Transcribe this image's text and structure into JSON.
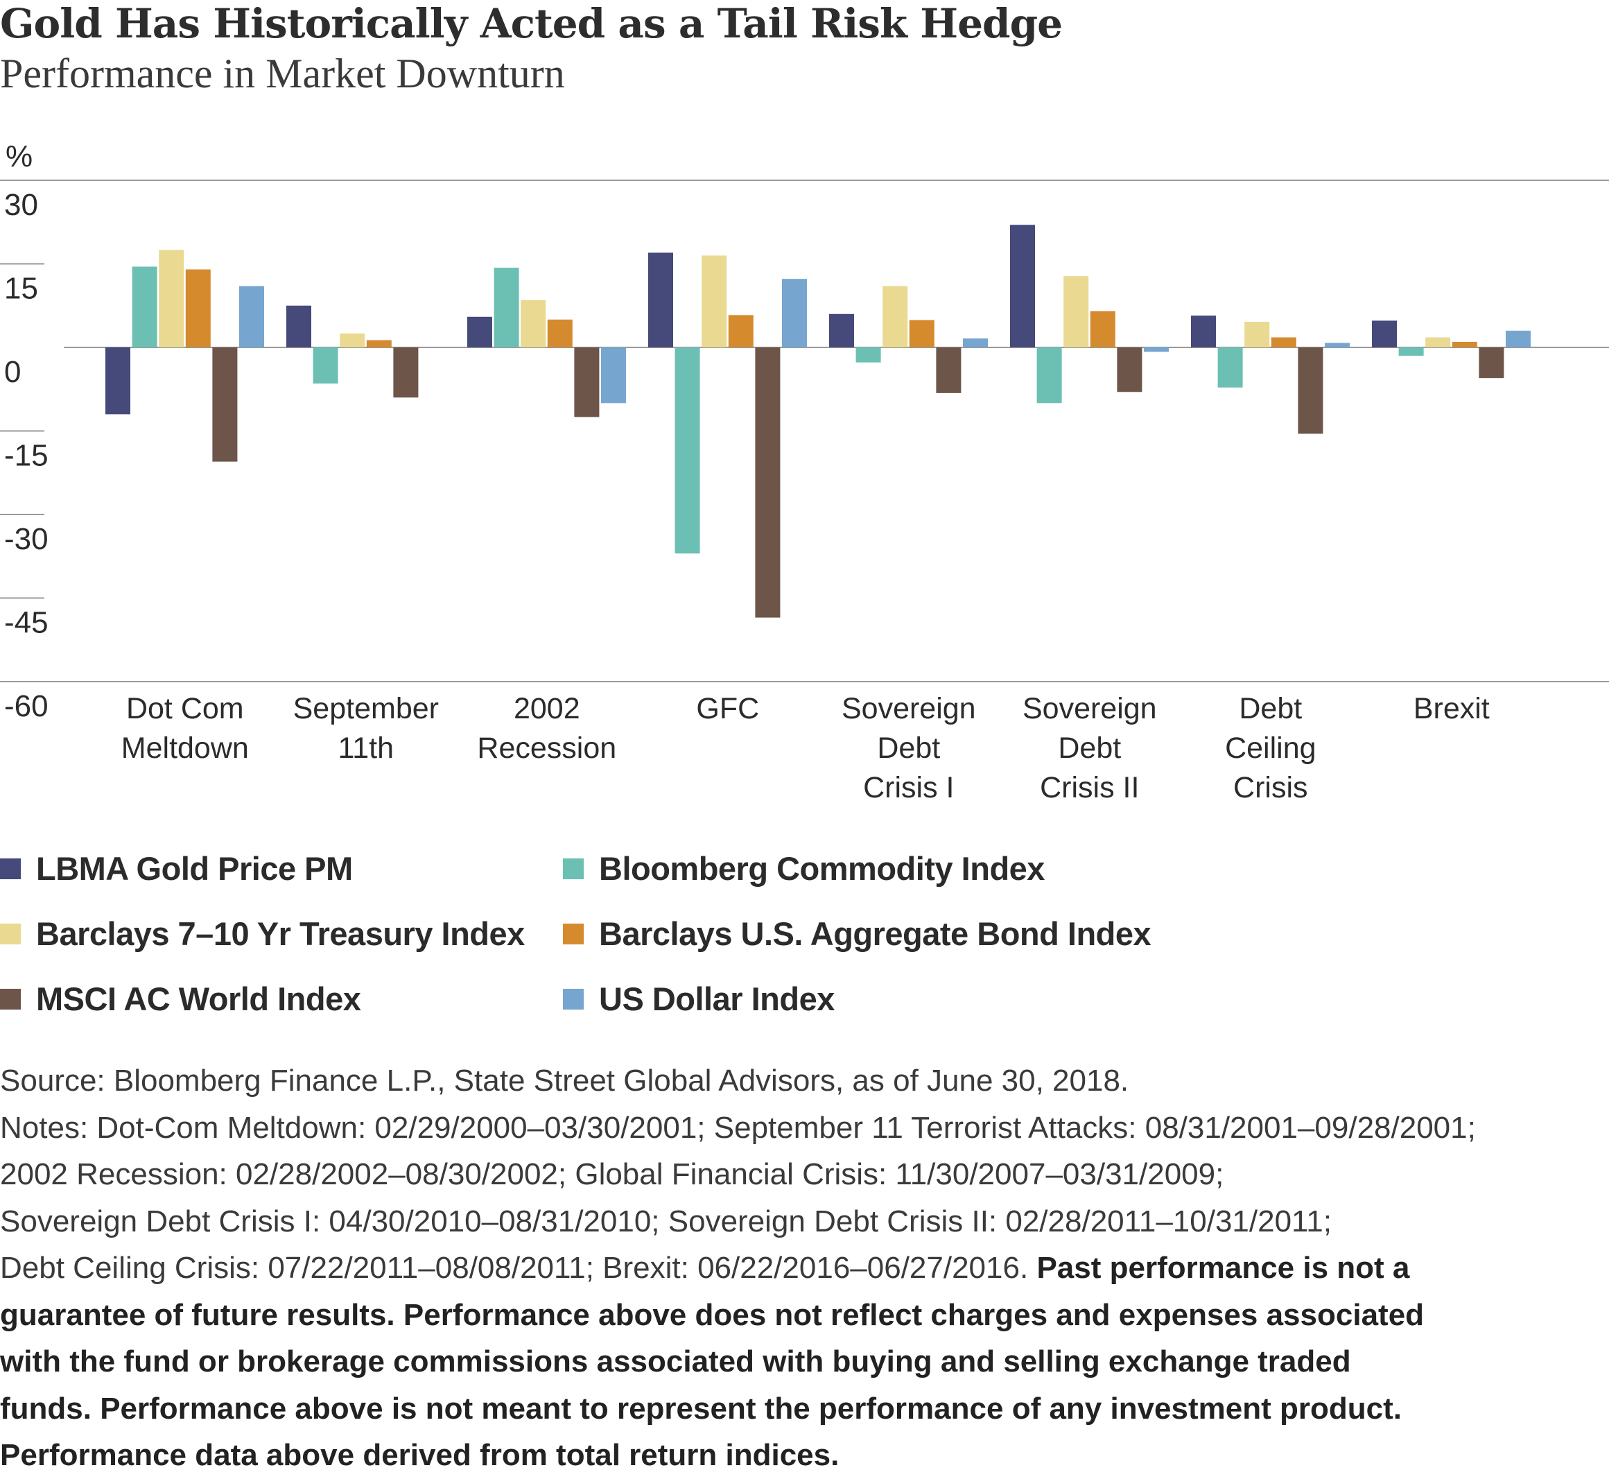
{
  "title": "Gold Has Historically Acted as a Tail Risk Hedge",
  "subtitle": "Performance in Market Downturn",
  "chart_data": {
    "type": "bar",
    "unit_label": "%",
    "ylim": [
      -60,
      30
    ],
    "yticks": [
      "30",
      "15",
      "0",
      "-15",
      "-30",
      "-45",
      "-60"
    ],
    "ytick_values": [
      30,
      15,
      0,
      -15,
      -30,
      -45,
      -60
    ],
    "grid": true,
    "legend_position": "bottom",
    "categories": [
      [
        "Dot Com",
        "Meltdown"
      ],
      [
        "September",
        "11th"
      ],
      [
        "2002",
        "Recession"
      ],
      [
        "GFC"
      ],
      [
        "Sovereign",
        "Debt",
        "Crisis I"
      ],
      [
        "Sovereign",
        "Debt",
        "Crisis II"
      ],
      [
        "Debt",
        "Ceiling",
        "Crisis"
      ],
      [
        "Brexit"
      ]
    ],
    "series": [
      {
        "name": "LBMA Gold Price PM",
        "color": "#454a7a",
        "values": [
          -12,
          7.5,
          5.5,
          17,
          6,
          22,
          5.7,
          4.8
        ]
      },
      {
        "name": "Bloomberg Commodity Index",
        "color": "#6cbfb3",
        "values": [
          14.5,
          -6.5,
          14.3,
          -37,
          -2.7,
          -10,
          -7.2,
          -1.5
        ]
      },
      {
        "name": "Barclays 7–10 Yr Treasury Index",
        "color": "#ead991",
        "values": [
          17.5,
          2.5,
          8.5,
          16.5,
          11,
          12.8,
          4.6,
          1.8
        ]
      },
      {
        "name": "Barclays U.S. Aggregate Bond Index",
        "color": "#d58a2d",
        "values": [
          14,
          1.3,
          5,
          5.8,
          4.9,
          6.5,
          1.8,
          1
        ]
      },
      {
        "name": "MSCI AC World Index",
        "color": "#6d5549",
        "values": [
          -20.5,
          -9,
          -12.5,
          -48.5,
          -8.2,
          -8,
          -15.5,
          -5.5
        ]
      },
      {
        "name": "US Dollar Index",
        "color": "#76a6cf",
        "values": [
          11,
          null,
          -10,
          12.3,
          1.6,
          -0.8,
          0.8,
          3
        ]
      }
    ]
  },
  "legend": [
    {
      "label": "LBMA Gold Price PM",
      "color": "#454a7a"
    },
    {
      "label": "Bloomberg Commodity Index",
      "color": "#6cbfb3"
    },
    {
      "label": "Barclays 7–10 Yr Treasury Index",
      "color": "#ead991"
    },
    {
      "label": "Barclays U.S. Aggregate Bond Index",
      "color": "#d58a2d"
    },
    {
      "label": "MSCI AC World Index",
      "color": "#6d5549"
    },
    {
      "label": "US Dollar Index",
      "color": "#76a6cf"
    }
  ],
  "notes": {
    "source": "Source: Bloomberg Finance L.P., State Street Global Advisors, as of June 30, 2018.",
    "line1": "Notes: Dot-Com Meltdown: 02/29/2000–03/30/2001; September 11 Terrorist Attacks: 08/31/2001–09/28/2001;",
    "line2": "2002 Recession: 02/28/2002–08/30/2002; Global Financial Crisis: 11/30/2007–03/31/2009;",
    "line3": "Sovereign Debt Crisis I: 04/30/2010–08/31/2010; Sovereign Debt Crisis II: 02/28/2011–10/31/2011;",
    "line4": "Debt Ceiling Crisis: 07/22/2011–08/08/2011; Brexit: 06/22/2016–06/27/2016.",
    "bold_a": "Past performance is not a",
    "bold_b": "guarantee of future results. Performance above does not reflect charges and expenses associated",
    "bold_c": "with the fund or brokerage commissions associated with buying and selling exchange traded",
    "bold_d": "funds. Performance above is not meant to represent the performance of any investment product.",
    "bold_e": "Performance data above derived from total return indices."
  }
}
